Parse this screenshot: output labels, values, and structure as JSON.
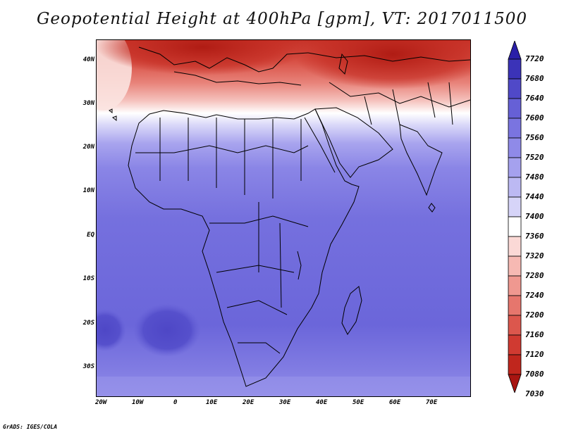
{
  "title": "Geopotential Height at 400hPa [gpm], VT: 2017011500",
  "credit": "GrADS: IGES/COLA",
  "lat_labels": [
    "40N",
    "30N",
    "20N",
    "10N",
    "EQ",
    "10S",
    "20S",
    "30S"
  ],
  "lon_labels": [
    "20W",
    "10W",
    "0",
    "10E",
    "20E",
    "30E",
    "40E",
    "50E",
    "60E",
    "70E"
  ],
  "colorbar": {
    "levels": [
      "7720",
      "7680",
      "7640",
      "7600",
      "7560",
      "7520",
      "7480",
      "7440",
      "7400",
      "7360",
      "7320",
      "7280",
      "7240",
      "7200",
      "7160",
      "7120",
      "7080",
      "7030"
    ],
    "colors": [
      "#2a1fa8",
      "#3b33b8",
      "#5049c8",
      "#6660d6",
      "#7a74e0",
      "#8f8ae8",
      "#a5a1ee",
      "#bcb9f3",
      "#d6d4f8",
      "#ffffff",
      "#fbd9d6",
      "#f6b9b3",
      "#ef9890",
      "#e6766d",
      "#dc574d",
      "#d03a31",
      "#c0261d",
      "#a81511"
    ]
  },
  "chart_data": {
    "type": "heatmap",
    "field": "Geopotential Height",
    "level": "400hPa",
    "units": "gpm",
    "valid_time": "2017011500",
    "lon_range": [
      -25,
      80
    ],
    "lat_range": [
      -37,
      45
    ],
    "contour_levels": [
      7030,
      7080,
      7120,
      7160,
      7200,
      7240,
      7280,
      7320,
      7360,
      7400,
      7440,
      7480,
      7520,
      7560,
      7600,
      7640,
      7680,
      7720
    ]
  }
}
